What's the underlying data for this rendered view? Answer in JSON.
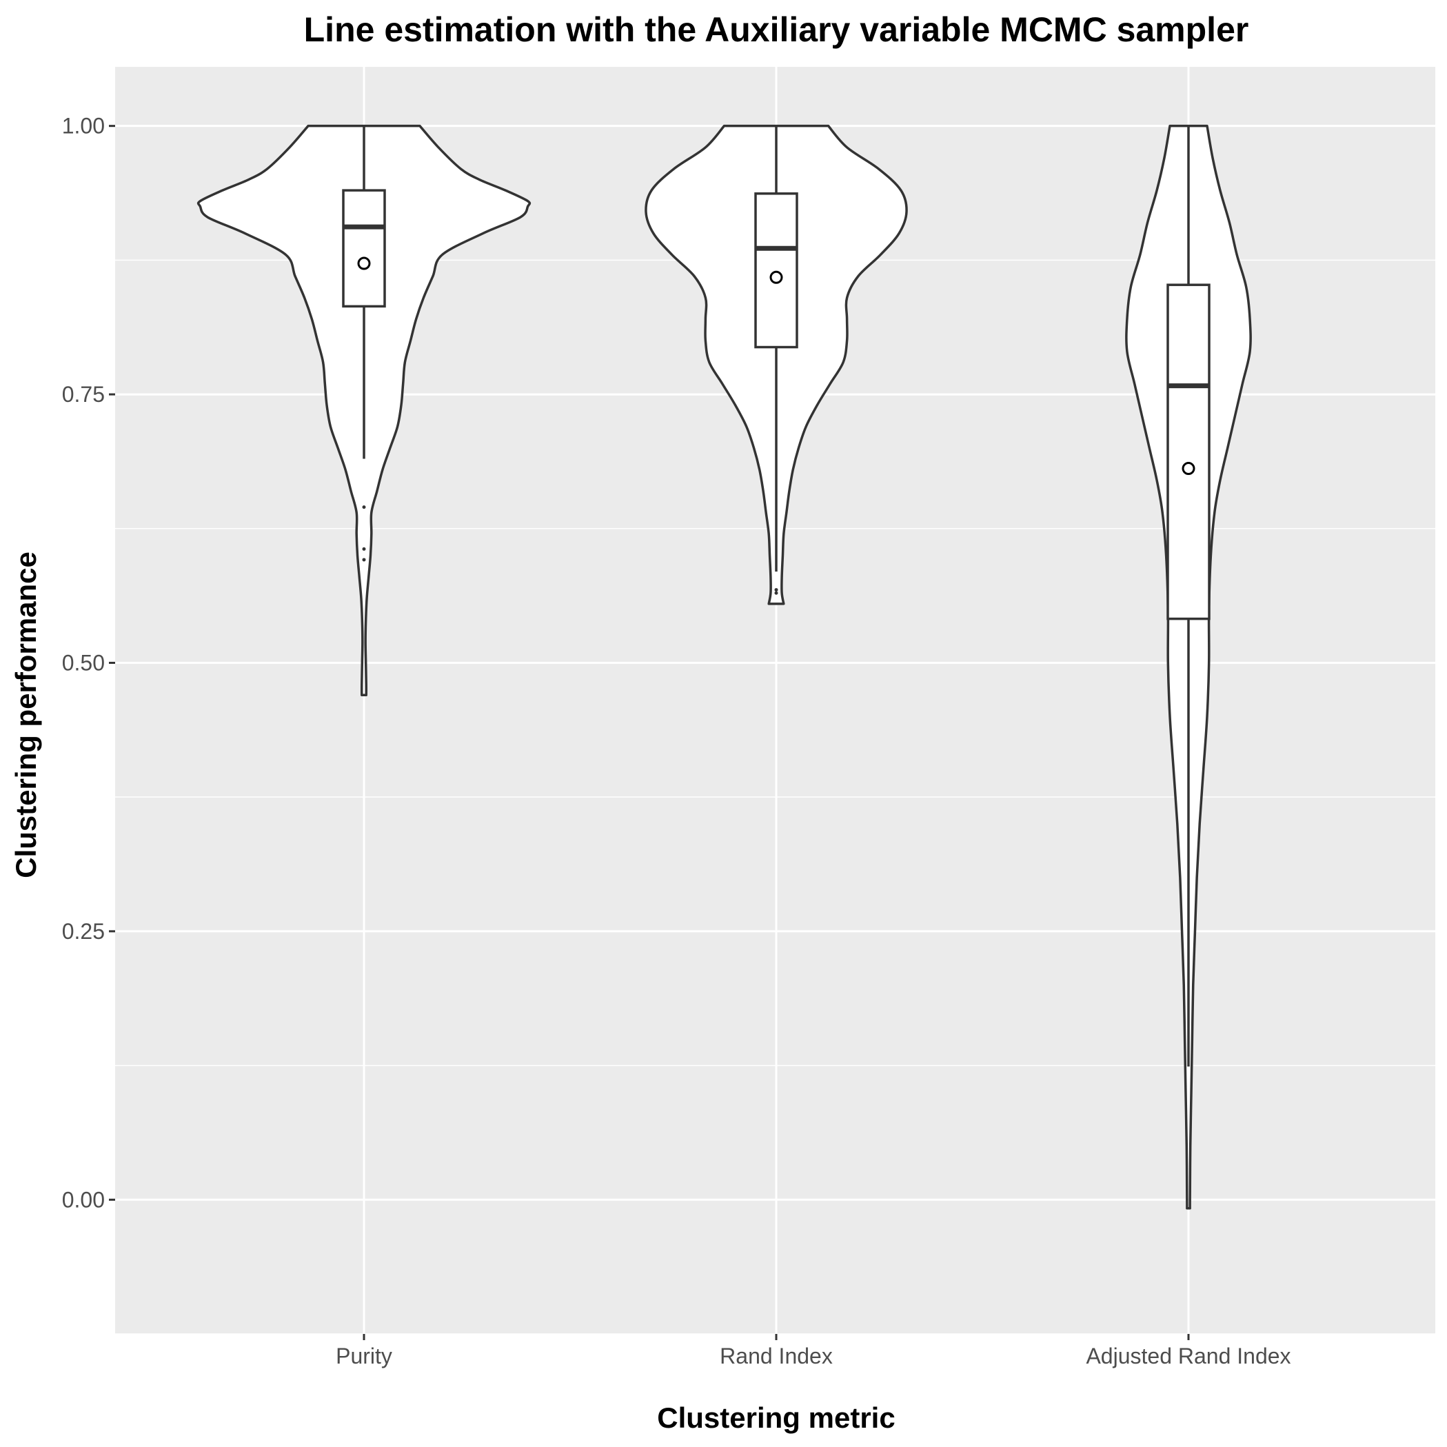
{
  "chart_data": {
    "type": "violin",
    "title": "Line estimation with the Auxiliary variable MCMC sampler",
    "xlabel": "Clustering metric",
    "ylabel": "Clustering performance",
    "categories": [
      "Purity",
      "Rand Index",
      "Adjusted Rand Index"
    ],
    "ylim": [
      -0.125,
      1.055
    ],
    "yticks": [
      0.0,
      0.25,
      0.5,
      0.75,
      1.0
    ],
    "ytick_labels": [
      "0.00",
      "0.25",
      "0.50",
      "0.75",
      "1.00"
    ],
    "grid": true,
    "colors": {
      "panel_bg": "#ebebeb",
      "grid": "#ffffff",
      "violin_fill": "#ffffff",
      "stroke": "#333333"
    },
    "series": [
      {
        "category": "Purity",
        "violin": {
          "profile": [
            [
              1.0,
              0.3
            ],
            [
              0.98,
              0.4
            ],
            [
              0.96,
              0.52
            ],
            [
              0.95,
              0.62
            ],
            [
              0.94,
              0.76
            ],
            [
              0.93,
              0.88
            ],
            [
              0.925,
              0.88
            ],
            [
              0.915,
              0.84
            ],
            [
              0.9,
              0.64
            ],
            [
              0.88,
              0.42
            ],
            [
              0.86,
              0.37
            ],
            [
              0.84,
              0.32
            ],
            [
              0.82,
              0.28
            ],
            [
              0.8,
              0.25
            ],
            [
              0.78,
              0.22
            ],
            [
              0.76,
              0.21
            ],
            [
              0.74,
              0.2
            ],
            [
              0.72,
              0.18
            ],
            [
              0.7,
              0.14
            ],
            [
              0.68,
              0.1
            ],
            [
              0.66,
              0.07
            ],
            [
              0.64,
              0.04
            ],
            [
              0.62,
              0.04
            ],
            [
              0.6,
              0.035
            ],
            [
              0.58,
              0.025
            ],
            [
              0.56,
              0.015
            ],
            [
              0.54,
              0.01
            ],
            [
              0.52,
              0.008
            ],
            [
              0.5,
              0.01
            ],
            [
              0.48,
              0.012
            ],
            [
              0.47,
              0.012
            ]
          ]
        },
        "box": {
          "whisker_low": 0.69,
          "q1": 0.832,
          "median": 0.906,
          "q3": 0.94,
          "whisker_high": 1.0
        },
        "mean": 0.872,
        "outliers": [
          0.645,
          0.606,
          0.596
        ]
      },
      {
        "category": "Rand Index",
        "violin": {
          "profile": [
            [
              1.0,
              0.28
            ],
            [
              0.98,
              0.38
            ],
            [
              0.96,
              0.55
            ],
            [
              0.94,
              0.67
            ],
            [
              0.92,
              0.7
            ],
            [
              0.9,
              0.66
            ],
            [
              0.88,
              0.56
            ],
            [
              0.86,
              0.44
            ],
            [
              0.84,
              0.38
            ],
            [
              0.82,
              0.38
            ],
            [
              0.8,
              0.38
            ],
            [
              0.78,
              0.36
            ],
            [
              0.76,
              0.29
            ],
            [
              0.74,
              0.22
            ],
            [
              0.72,
              0.16
            ],
            [
              0.7,
              0.12
            ],
            [
              0.68,
              0.09
            ],
            [
              0.66,
              0.07
            ],
            [
              0.64,
              0.055
            ],
            [
              0.62,
              0.04
            ],
            [
              0.6,
              0.035
            ],
            [
              0.58,
              0.03
            ],
            [
              0.565,
              0.03
            ],
            [
              0.555,
              0.04
            ]
          ]
        },
        "box": {
          "whisker_low": 0.585,
          "q1": 0.794,
          "median": 0.886,
          "q3": 0.937,
          "whisker_high": 1.0
        },
        "mean": 0.859,
        "outliers": [
          0.568,
          0.565
        ]
      },
      {
        "category": "Adjusted Rand Index",
        "violin": {
          "profile": [
            [
              1.0,
              0.1
            ],
            [
              0.97,
              0.13
            ],
            [
              0.94,
              0.17
            ],
            [
              0.91,
              0.22
            ],
            [
              0.88,
              0.26
            ],
            [
              0.85,
              0.31
            ],
            [
              0.82,
              0.33
            ],
            [
              0.79,
              0.33
            ],
            [
              0.76,
              0.29
            ],
            [
              0.73,
              0.25
            ],
            [
              0.7,
              0.21
            ],
            [
              0.67,
              0.17
            ],
            [
              0.64,
              0.14
            ],
            [
              0.6,
              0.12
            ],
            [
              0.55,
              0.11
            ],
            [
              0.5,
              0.11
            ],
            [
              0.45,
              0.1
            ],
            [
              0.4,
              0.08
            ],
            [
              0.35,
              0.06
            ],
            [
              0.3,
              0.045
            ],
            [
              0.25,
              0.035
            ],
            [
              0.2,
              0.025
            ],
            [
              0.15,
              0.02
            ],
            [
              0.1,
              0.015
            ],
            [
              0.05,
              0.01
            ],
            [
              0.0,
              0.008
            ],
            [
              -0.008,
              0.008
            ]
          ]
        },
        "box": {
          "whisker_low": 0.124,
          "q1": 0.541,
          "median": 0.758,
          "q3": 0.852,
          "whisker_high": 1.0
        },
        "mean": 0.681,
        "outliers": []
      }
    ]
  }
}
